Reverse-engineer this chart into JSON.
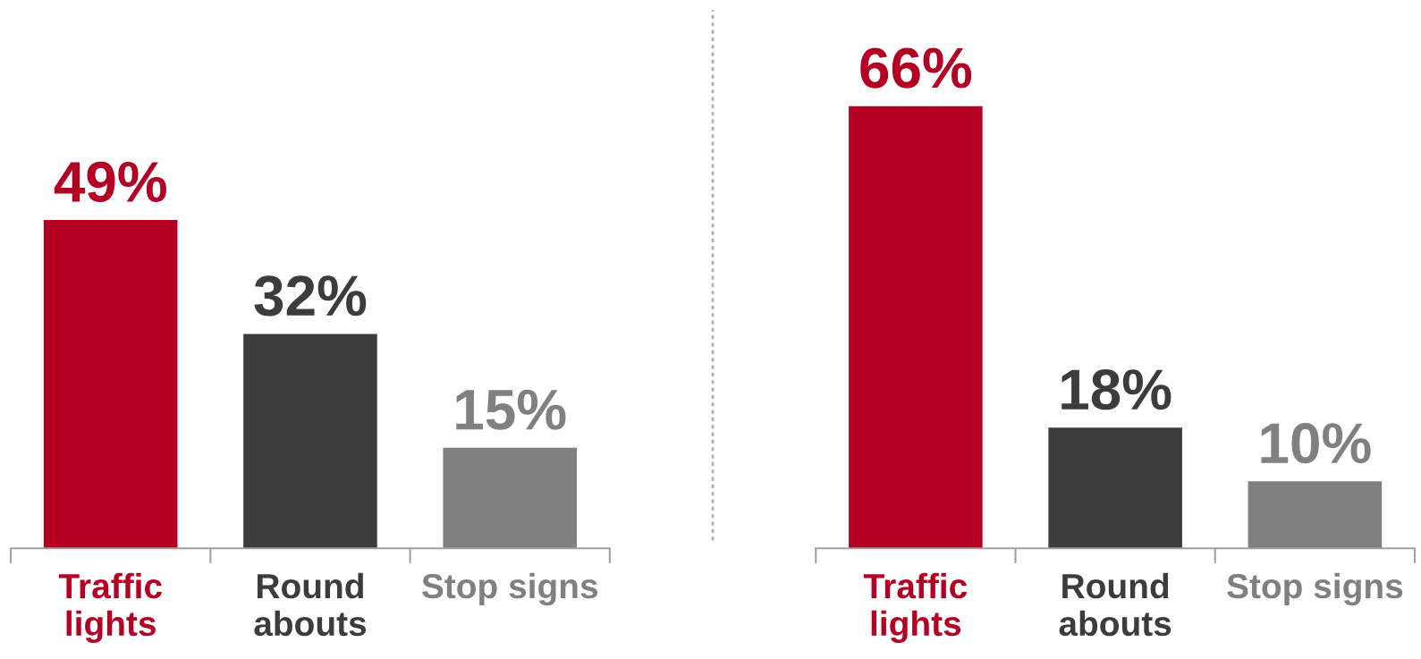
{
  "chart_data": [
    {
      "type": "bar",
      "categories": [
        "Traffic\nlights",
        "Round\nabouts",
        "Stop signs"
      ],
      "values": [
        49,
        32,
        15
      ],
      "value_labels": [
        "49%",
        "32%",
        "15%"
      ],
      "colors": [
        "#b30023",
        "#3c3c3c",
        "#808080"
      ],
      "tick_labels": "x",
      "grid": false,
      "legend": false
    },
    {
      "type": "bar",
      "categories": [
        "Traffic\nlights",
        "Round\nabouts",
        "Stop signs"
      ],
      "values": [
        66,
        18,
        10
      ],
      "value_labels": [
        "66%",
        "18%",
        "10%"
      ],
      "colors": [
        "#b30023",
        "#3c3c3c",
        "#808080"
      ],
      "tick_labels": "x",
      "grid": false,
      "legend": false
    }
  ]
}
